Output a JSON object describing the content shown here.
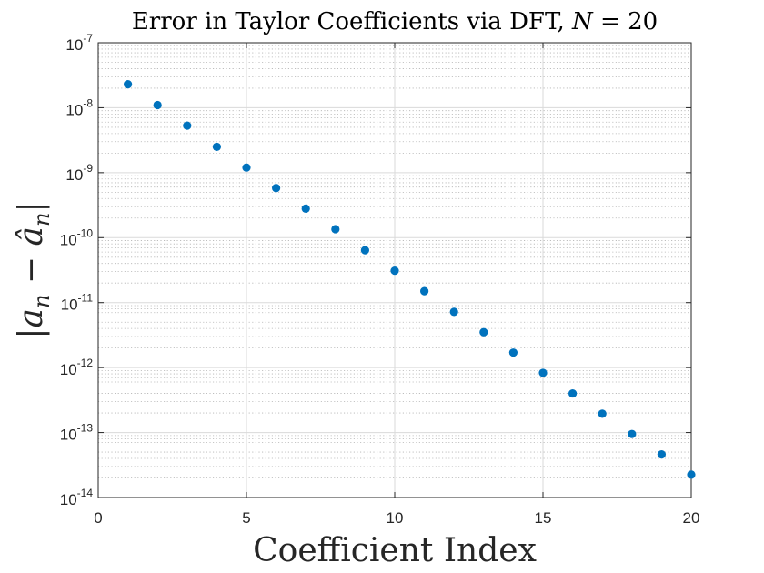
{
  "chart_data": {
    "type": "scatter",
    "title": "Error in Taylor Coefficients via DFT, N = 20",
    "xlabel": "Coefficient Index",
    "ylabel": "|a_n − â_n|",
    "xlim": [
      0,
      20
    ],
    "ylim": [
      1e-14,
      1e-07
    ],
    "yscale": "log",
    "grid": true,
    "minor_grid": true,
    "marker_color": "#0072BD",
    "xticks": [
      0,
      5,
      10,
      15,
      20
    ],
    "yticks": [
      {
        "base": "10",
        "exp": "-14"
      },
      {
        "base": "10",
        "exp": "-13"
      },
      {
        "base": "10",
        "exp": "-12"
      },
      {
        "base": "10",
        "exp": "-11"
      },
      {
        "base": "10",
        "exp": "-10"
      },
      {
        "base": "10",
        "exp": "-9"
      },
      {
        "base": "10",
        "exp": "-8"
      },
      {
        "base": "10",
        "exp": "-7"
      }
    ],
    "x": [
      1,
      2,
      3,
      4,
      5,
      6,
      7,
      8,
      9,
      10,
      11,
      12,
      13,
      14,
      15,
      16,
      17,
      18,
      19,
      20
    ],
    "y": [
      2.3e-08,
      1.1e-08,
      5.3e-09,
      2.5e-09,
      1.2e-09,
      5.8e-10,
      2.8e-10,
      1.35e-10,
      6.4e-11,
      3.1e-11,
      1.5e-11,
      7.2e-12,
      3.5e-12,
      1.7e-12,
      8.3e-13,
      4e-13,
      1.95e-13,
      9.5e-14,
      4.6e-14,
      2.25e-14
    ]
  }
}
